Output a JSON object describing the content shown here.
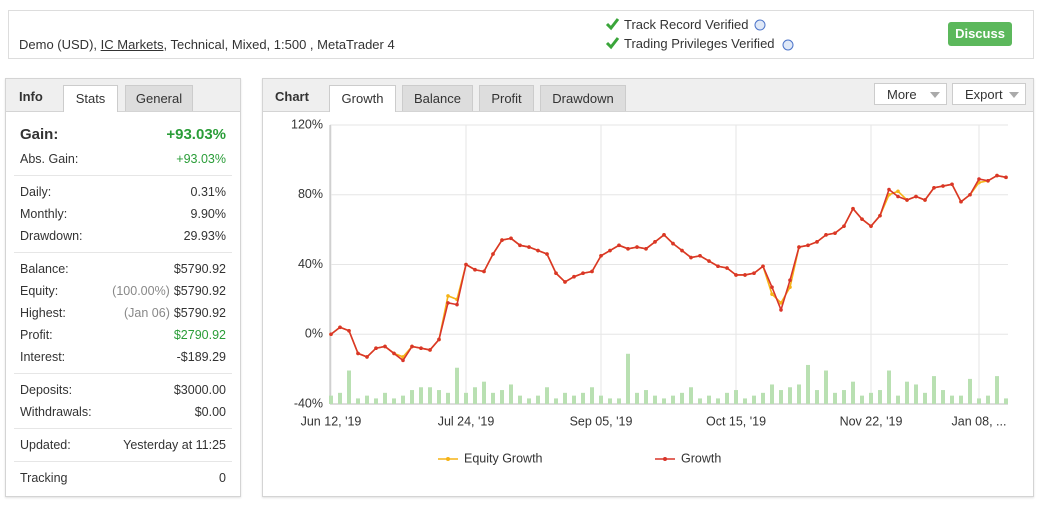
{
  "header": {
    "account_prefix": "Demo (USD), ",
    "broker": "IC Markets",
    "account_suffix": ", Technical, Mixed, 1:500 , MetaTrader 4",
    "verifications": [
      "Track Record Verified",
      "Trading Privileges Verified"
    ],
    "button": "Discuss"
  },
  "stats_panel": {
    "title": "Info",
    "tabs": [
      "Stats",
      "General"
    ],
    "groups": [
      {
        "rows": [
          {
            "label": "Gain:",
            "value": "+93.03%",
            "color": "#2a9d38"
          },
          {
            "label": "Abs. Gain:",
            "value": "+93.03%",
            "color": "#2a9d38"
          }
        ]
      },
      {
        "rows": [
          {
            "label": "Daily:",
            "value": "0.31%"
          },
          {
            "label": "Monthly:",
            "value": "9.90%"
          },
          {
            "label": "Drawdown:",
            "value": "29.93%"
          }
        ]
      },
      {
        "rows": [
          {
            "label": "Balance:",
            "value": "$5790.92"
          },
          {
            "label": "Equity:",
            "note": "(100.00%)",
            "value": "$5790.92"
          },
          {
            "label": "Highest:",
            "note": "(Jan 06)",
            "value": "$5790.92"
          },
          {
            "label": "Profit:",
            "value": "$2790.92",
            "color": "#2a9d38"
          },
          {
            "label": "Interest:",
            "value": "-$189.29"
          }
        ]
      },
      {
        "rows": [
          {
            "label": "Deposits:",
            "value": "$3000.00"
          },
          {
            "label": "Withdrawals:",
            "value": "$0.00"
          }
        ]
      },
      {
        "rows": [
          {
            "label": "Updated:",
            "value": "Yesterday at 11:25"
          }
        ]
      },
      {
        "rows": [
          {
            "label": "Tracking",
            "value": "0"
          }
        ]
      }
    ]
  },
  "chart_panel": {
    "title": "Chart",
    "tabs": [
      "Growth",
      "Balance",
      "Profit",
      "Drawdown"
    ],
    "buttons": [
      "More",
      "Export"
    ]
  },
  "chart_data": {
    "type": "line",
    "categories": [
      "Jun 12, '19",
      null,
      null,
      null,
      null,
      null,
      null,
      null,
      null,
      null,
      null,
      null,
      null,
      null,
      null,
      "Jul 24, '19",
      null,
      null,
      null,
      null,
      null,
      null,
      null,
      null,
      null,
      null,
      null,
      null,
      null,
      null,
      "Sep 05, '19",
      null,
      null,
      null,
      null,
      null,
      null,
      null,
      null,
      null,
      null,
      null,
      null,
      null,
      null,
      "Oct 15, '19",
      null,
      null,
      null,
      null,
      null,
      null,
      null,
      null,
      null,
      null,
      null,
      null,
      null,
      null,
      "Nov 22, '19",
      null,
      null,
      null,
      null,
      null,
      null,
      null,
      null,
      null,
      null,
      null,
      "Jan 08, ...",
      null,
      null,
      null
    ],
    "series": [
      {
        "name": "Equity Growth",
        "color": "#f5b316",
        "values": [
          0,
          4,
          2,
          -11,
          -13,
          -8,
          -7,
          -11,
          -13,
          -7,
          -8,
          -9,
          -3,
          22,
          20,
          40,
          37,
          36,
          46,
          54,
          55,
          51,
          50,
          48,
          46,
          35,
          30,
          33,
          35,
          36,
          45,
          48,
          51,
          49,
          50,
          49,
          53,
          57,
          52,
          48,
          44,
          45,
          42,
          39,
          38,
          34,
          34,
          35,
          39,
          23,
          18,
          27,
          50,
          51,
          53,
          57,
          58,
          62,
          72,
          66,
          62,
          68,
          80,
          82,
          77,
          79,
          77,
          84,
          85,
          86,
          76,
          80,
          87,
          88,
          91,
          90
        ]
      },
      {
        "name": "Growth",
        "color": "#d9352a",
        "values": [
          0,
          4,
          2,
          -11,
          -13,
          -8,
          -7,
          -11,
          -15,
          -7,
          -8,
          -9,
          -3,
          18,
          17,
          40,
          37,
          36,
          46,
          54,
          55,
          51,
          50,
          48,
          46,
          35,
          30,
          33,
          35,
          36,
          45,
          48,
          51,
          49,
          50,
          49,
          53,
          57,
          52,
          48,
          44,
          45,
          42,
          39,
          38,
          34,
          34,
          35,
          39,
          27,
          14,
          31,
          50,
          51,
          53,
          57,
          58,
          62,
          72,
          66,
          62,
          68,
          83,
          79,
          77,
          79,
          77,
          84,
          85,
          86,
          76,
          80,
          89,
          88,
          91,
          90
        ]
      }
    ],
    "bars": {
      "color": "#b9e0b2",
      "ylim": [
        0,
        100
      ],
      "values": [
        3,
        4,
        12,
        2,
        3,
        2,
        4,
        2,
        3,
        5,
        6,
        6,
        5,
        4,
        13,
        4,
        6,
        8,
        4,
        5,
        7,
        3,
        2,
        3,
        6,
        2,
        4,
        3,
        4,
        6,
        3,
        2,
        2,
        18,
        4,
        5,
        3,
        2,
        3,
        4,
        6,
        2,
        3,
        2,
        4,
        5,
        2,
        3,
        4,
        7,
        5,
        6,
        7,
        14,
        5,
        12,
        4,
        5,
        8,
        3,
        4,
        5,
        12,
        3,
        8,
        7,
        4,
        10,
        5,
        3,
        3,
        9,
        2,
        3,
        10,
        2
      ]
    },
    "ylim": [
      -40,
      120
    ],
    "yticks": [
      {
        "value": -40,
        "label": "-40%"
      },
      {
        "value": 0,
        "label": "0%"
      },
      {
        "value": 40,
        "label": "40%"
      },
      {
        "value": 80,
        "label": "80%"
      },
      {
        "value": 120,
        "label": "120%"
      }
    ],
    "grid": true
  }
}
